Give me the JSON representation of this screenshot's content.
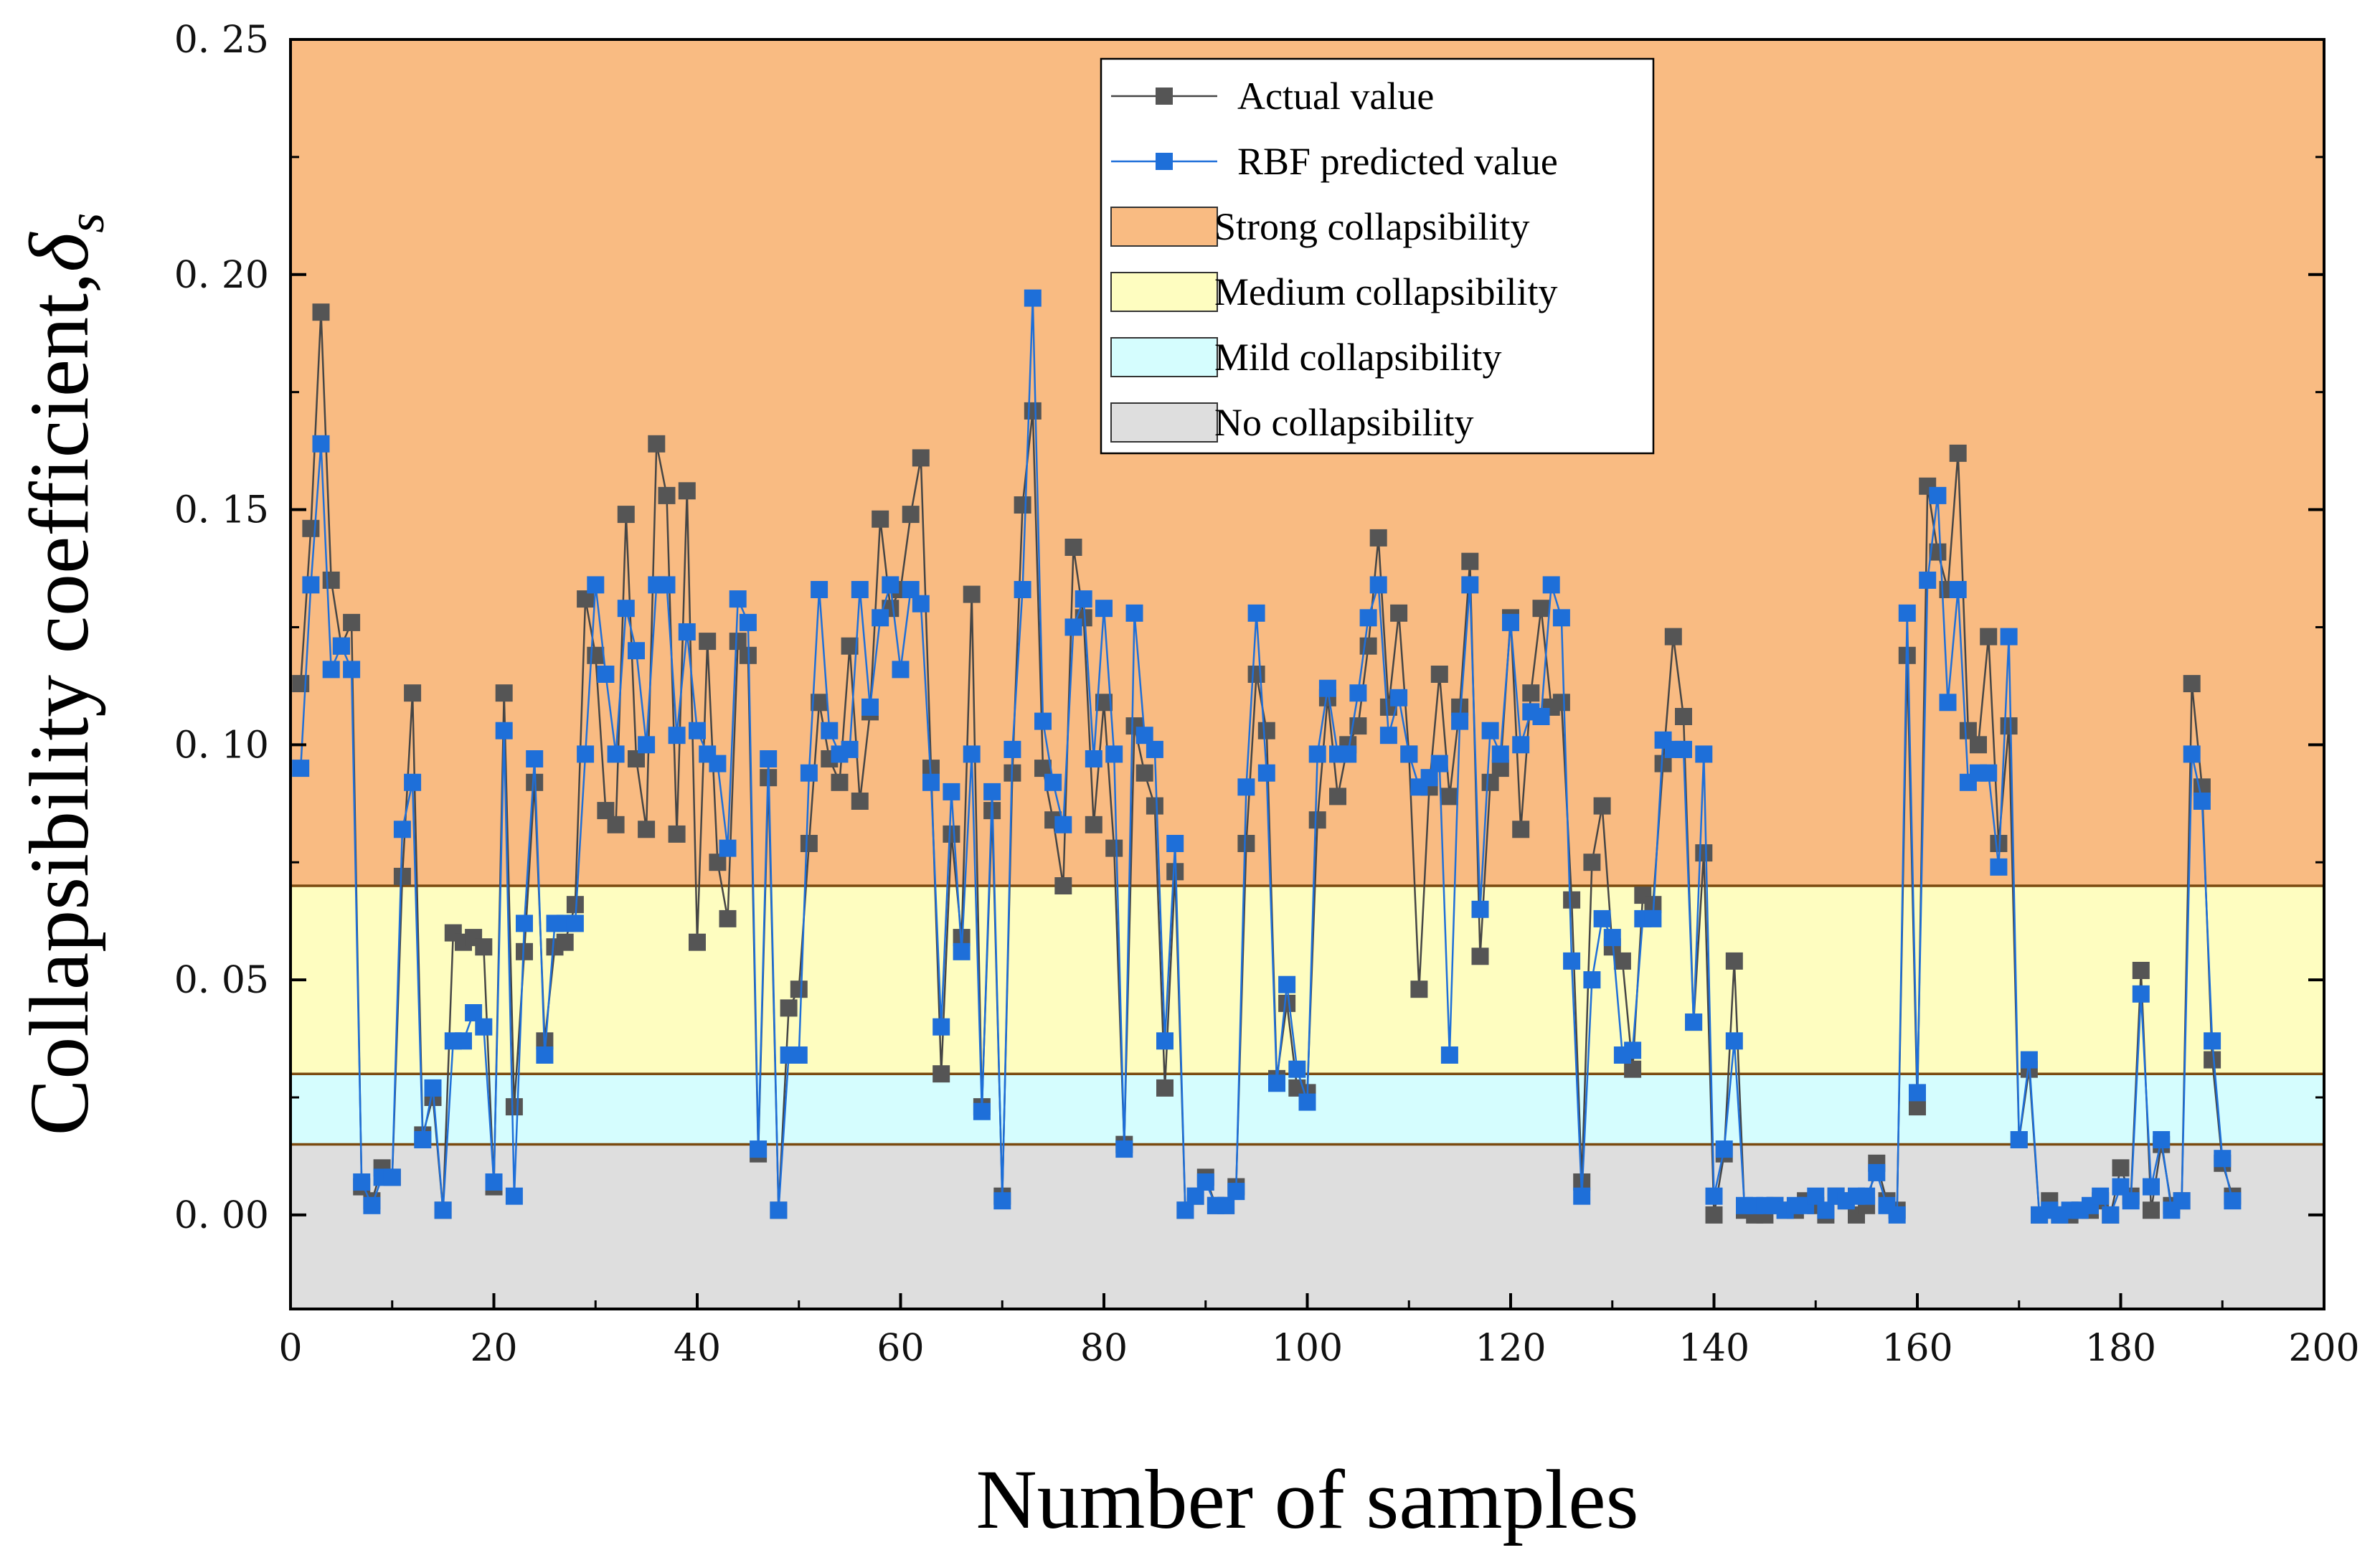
{
  "chart_data": {
    "type": "line",
    "title": "",
    "xlabel": "Number of samples",
    "ylabel": "Collapsibility coefficient,",
    "ylabel_symbol": "δ",
    "ylabel_subscript": "s",
    "xlim": [
      0,
      200
    ],
    "ylim": [
      -0.02,
      0.25
    ],
    "xticks": [
      0,
      20,
      40,
      60,
      80,
      100,
      120,
      140,
      160,
      180,
      200
    ],
    "xtick_labels": [
      "0",
      "20",
      "40",
      "60",
      "80",
      "100",
      "120",
      "140",
      "160",
      "180",
      "200"
    ],
    "yticks": [
      0,
      0.05,
      0.1,
      0.15,
      0.2,
      0.25
    ],
    "ytick_labels": [
      "0. 00",
      "0. 05",
      "0. 10",
      "0. 15",
      "0. 20",
      "0. 25"
    ],
    "grid": false,
    "legend_position": "top-center",
    "bands": [
      {
        "name": "Strong collapsibility",
        "from": 0.07,
        "to": 0.25,
        "color": "#F9BB82"
      },
      {
        "name": "Medium collapsibility",
        "from": 0.03,
        "to": 0.07,
        "color": "#FEFDC0"
      },
      {
        "name": "Mild collapsibility",
        "from": 0.015,
        "to": 0.03,
        "color": "#D5FDFE"
      },
      {
        "name": "No collapsibility",
        "from": -0.02,
        "to": 0.015,
        "color": "#DEDEDE"
      }
    ],
    "series": [
      {
        "name": "Actual value",
        "color": "#454545",
        "marker_color": "#555555",
        "x_start": 1,
        "values": [
          0.113,
          0.146,
          0.192,
          0.135,
          0.121,
          0.126,
          0.006,
          0.003,
          0.01,
          0.008,
          0.072,
          0.111,
          0.017,
          0.025,
          0.001,
          0.06,
          0.058,
          0.059,
          0.057,
          0.006,
          0.111,
          0.023,
          0.056,
          0.092,
          0.037,
          0.057,
          0.058,
          0.066,
          0.131,
          0.119,
          0.086,
          0.083,
          0.149,
          0.097,
          0.082,
          0.164,
          0.153,
          0.081,
          0.154,
          0.058,
          0.122,
          0.075,
          0.063,
          0.122,
          0.119,
          0.013,
          0.093,
          0.001,
          0.044,
          0.048,
          0.079,
          0.109,
          0.097,
          0.092,
          0.121,
          0.088,
          0.107,
          0.148,
          0.129,
          0.133,
          0.149,
          0.161,
          0.095,
          0.03,
          0.081,
          0.059,
          0.132,
          0.023,
          0.086,
          0.004,
          0.094,
          0.151,
          0.171,
          0.095,
          0.084,
          0.07,
          0.142,
          0.127,
          0.083,
          0.109,
          0.078,
          0.015,
          0.104,
          0.094,
          0.087,
          0.027,
          0.073,
          0.001,
          0.004,
          0.008,
          0.002,
          0.002,
          0.006,
          0.079,
          0.115,
          0.103,
          0.029,
          0.045,
          0.027,
          0.026,
          0.084,
          0.11,
          0.089,
          0.1,
          0.104,
          0.121,
          0.144,
          0.108,
          0.128,
          0.098,
          0.048,
          0.091,
          0.115,
          0.089,
          0.108,
          0.139,
          0.055,
          0.092,
          0.095,
          0.127,
          0.082,
          0.111,
          0.129,
          0.108,
          0.109,
          0.067,
          0.007,
          0.075,
          0.087,
          0.057,
          0.054,
          0.031,
          0.068,
          0.066,
          0.096,
          0.123,
          0.106,
          0.041,
          0.077,
          0.0,
          0.013,
          0.054,
          0.001,
          0.0,
          0.0,
          0.002,
          0.001,
          0.001,
          0.003,
          0.002,
          0.0,
          0.004,
          0.003,
          0.0,
          0.002,
          0.011,
          0.003,
          0.001,
          0.119,
          0.023,
          0.155,
          0.141,
          0.133,
          0.162,
          0.103,
          0.1,
          0.123,
          0.079,
          0.104,
          0.016,
          0.031,
          0.0,
          0.003,
          0.0,
          0.0,
          0.001,
          0.001,
          0.003,
          0.0,
          0.01,
          0.004,
          0.052,
          0.001,
          0.015,
          0.002,
          0.003,
          0.113,
          0.091,
          0.033,
          0.011,
          0.004
        ]
      },
      {
        "name": "RBF predicted value",
        "color": "#1E6FD9",
        "marker_color": "#1E6FD9",
        "x_start": 1,
        "values": [
          0.095,
          0.134,
          0.164,
          0.116,
          0.121,
          0.116,
          0.007,
          0.002,
          0.008,
          0.008,
          0.082,
          0.092,
          0.016,
          0.027,
          0.001,
          0.037,
          0.037,
          0.043,
          0.04,
          0.007,
          0.103,
          0.004,
          0.062,
          0.097,
          0.034,
          0.062,
          0.062,
          0.062,
          0.098,
          0.134,
          0.115,
          0.098,
          0.129,
          0.12,
          0.1,
          0.134,
          0.134,
          0.102,
          0.124,
          0.103,
          0.098,
          0.096,
          0.078,
          0.131,
          0.126,
          0.014,
          0.097,
          0.001,
          0.034,
          0.034,
          0.094,
          0.133,
          0.103,
          0.098,
          0.099,
          0.133,
          0.108,
          0.127,
          0.134,
          0.116,
          0.133,
          0.13,
          0.092,
          0.04,
          0.09,
          0.056,
          0.098,
          0.022,
          0.09,
          0.003,
          0.099,
          0.133,
          0.195,
          0.105,
          0.092,
          0.083,
          0.125,
          0.131,
          0.097,
          0.129,
          0.098,
          0.014,
          0.128,
          0.102,
          0.099,
          0.037,
          0.079,
          0.001,
          0.004,
          0.007,
          0.002,
          0.002,
          0.005,
          0.091,
          0.128,
          0.094,
          0.028,
          0.049,
          0.031,
          0.024,
          0.098,
          0.112,
          0.098,
          0.098,
          0.111,
          0.127,
          0.134,
          0.102,
          0.11,
          0.098,
          0.091,
          0.093,
          0.096,
          0.034,
          0.105,
          0.134,
          0.065,
          0.103,
          0.098,
          0.126,
          0.1,
          0.107,
          0.106,
          0.134,
          0.127,
          0.054,
          0.004,
          0.05,
          0.063,
          0.059,
          0.034,
          0.035,
          0.063,
          0.063,
          0.101,
          0.099,
          0.099,
          0.041,
          0.098,
          0.004,
          0.014,
          0.037,
          0.002,
          0.002,
          0.002,
          0.002,
          0.001,
          0.002,
          0.002,
          0.004,
          0.001,
          0.004,
          0.003,
          0.004,
          0.004,
          0.009,
          0.002,
          0.0,
          0.128,
          0.026,
          0.135,
          0.153,
          0.109,
          0.133,
          0.092,
          0.094,
          0.094,
          0.074,
          0.123,
          0.016,
          0.033,
          0.0,
          0.001,
          0.0,
          0.001,
          0.001,
          0.002,
          0.004,
          0.0,
          0.006,
          0.003,
          0.047,
          0.006,
          0.016,
          0.001,
          0.003,
          0.098,
          0.088,
          0.037,
          0.012,
          0.003
        ]
      }
    ]
  }
}
